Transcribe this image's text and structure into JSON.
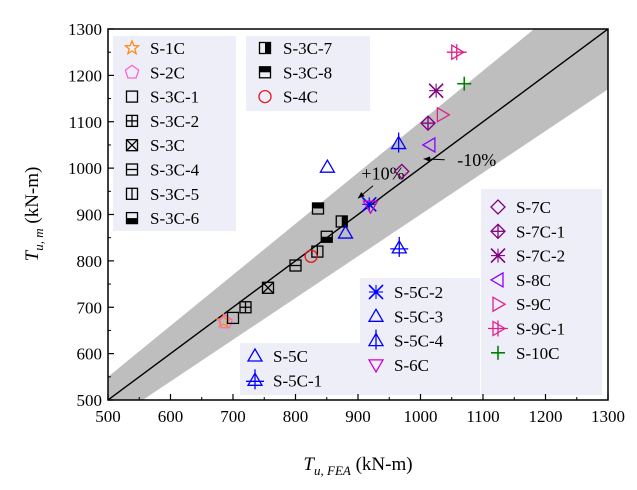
{
  "chart_data": {
    "type": "scatter",
    "title": "",
    "xlabel": {
      "main": "T",
      "sub": "u, FEA",
      "unit": " (kN-m)"
    },
    "ylabel": {
      "main": "T",
      "sub": "u, m",
      "unit": " (kN-m)"
    },
    "xlim": [
      500,
      1300
    ],
    "ylim": [
      500,
      1300
    ],
    "xticks": [
      500,
      600,
      700,
      800,
      900,
      1000,
      1100,
      1200,
      1300
    ],
    "yticks": [
      500,
      600,
      700,
      800,
      900,
      1000,
      1100,
      1200,
      1300
    ],
    "grid": false,
    "reference_line": {
      "slope": 1,
      "label": ""
    },
    "band": {
      "upper_factor": 1.1,
      "lower_factor": 0.9,
      "fill": "#bebebe"
    },
    "annotations": [
      {
        "text": "+10%",
        "at": [
          940,
          975
        ],
        "arrow_to": [
          900,
          935
        ]
      },
      {
        "text": "-10%",
        "at": [
          1090,
          1005
        ],
        "arrow_to": [
          1005,
          1020
        ]
      }
    ],
    "series": [
      {
        "name": "S-1C",
        "marker": "star",
        "color": "#ff8c1a",
        "points": [
          [
            685,
            670
          ]
        ]
      },
      {
        "name": "S-2C",
        "marker": "pentagon",
        "color": "#ff66cc",
        "points": [
          [
            688,
            668
          ]
        ]
      },
      {
        "name": "S-3C-1",
        "marker": "square-open",
        "color": "#000000",
        "points": [
          [
            700,
            677
          ]
        ]
      },
      {
        "name": "S-3C-2",
        "marker": "square-plus",
        "color": "#000000",
        "points": [
          [
            720,
            700
          ]
        ]
      },
      {
        "name": "S-3C",
        "marker": "square-x",
        "color": "#000000",
        "points": [
          [
            756,
            742
          ]
        ]
      },
      {
        "name": "S-3C-4",
        "marker": "square-hline",
        "color": "#000000",
        "points": [
          [
            800,
            790
          ]
        ]
      },
      {
        "name": "S-3C-5",
        "marker": "square-vline",
        "color": "#000000",
        "points": [
          [
            835,
            820
          ]
        ]
      },
      {
        "name": "S-3C-6",
        "marker": "square-bottom",
        "color": "#000000",
        "points": [
          [
            850,
            852
          ]
        ]
      },
      {
        "name": "S-3C-7",
        "marker": "square-right",
        "color": "#000000",
        "points": [
          [
            874,
            885
          ]
        ]
      },
      {
        "name": "S-3C-8",
        "marker": "square-top",
        "color": "#000000",
        "points": [
          [
            836,
            913
          ]
        ]
      },
      {
        "name": "S-4C",
        "marker": "circle",
        "color": "#e8141e",
        "points": [
          [
            825,
            810
          ]
        ]
      },
      {
        "name": "S-5C",
        "marker": "triangle-up",
        "color": "#0000ff",
        "points": [
          [
            880,
            860
          ]
        ]
      },
      {
        "name": "S-5C-1",
        "marker": "triangle-up-plus",
        "color": "#0000ff",
        "points": [
          [
            966,
            828
          ]
        ]
      },
      {
        "name": "S-5C-2",
        "marker": "x-star",
        "color": "#0000ff",
        "points": [
          [
            918,
            922
          ]
        ]
      },
      {
        "name": "S-5C-3",
        "marker": "triangle-up",
        "color": "#0000ff",
        "points": [
          [
            851,
            1002
          ]
        ]
      },
      {
        "name": "S-5C-4",
        "marker": "triangle-up-vline",
        "color": "#0000ff",
        "points": [
          [
            965,
            1053
          ]
        ]
      },
      {
        "name": "S-6C",
        "marker": "triangle-down",
        "color": "#cc00cc",
        "points": [
          [
            920,
            918
          ]
        ]
      },
      {
        "name": "S-7C",
        "marker": "diamond",
        "color": "#800080",
        "points": [
          [
            970,
            993
          ]
        ]
      },
      {
        "name": "S-7C-1",
        "marker": "diamond-plus",
        "color": "#800080",
        "points": [
          [
            1012,
            1097
          ]
        ]
      },
      {
        "name": "S-7C-2",
        "marker": "x-star",
        "color": "#800080",
        "points": [
          [
            1025,
            1167
          ]
        ]
      },
      {
        "name": "S-8C",
        "marker": "triangle-left",
        "color": "#8c00ff",
        "points": [
          [
            1015,
            1050
          ]
        ]
      },
      {
        "name": "S-9C",
        "marker": "triangle-right",
        "color": "#e0208c",
        "points": [
          [
            1035,
            1115
          ]
        ]
      },
      {
        "name": "S-9C-1",
        "marker": "triangle-right-plus",
        "color": "#e0208c",
        "points": [
          [
            1058,
            1250
          ]
        ]
      },
      {
        "name": "S-10C",
        "marker": "plus",
        "color": "#008000",
        "points": [
          [
            1070,
            1182
          ]
        ]
      }
    ],
    "legend_groups": [
      {
        "location": "top-left column 1",
        "items": [
          "S-1C",
          "S-2C",
          "S-3C-1",
          "S-3C-2",
          "S-3C",
          "S-3C-4",
          "S-3C-5",
          "S-3C-6"
        ]
      },
      {
        "location": "top-left column 2",
        "items": [
          "S-3C-7",
          "S-3C-8",
          "S-4C"
        ]
      },
      {
        "location": "bottom-center",
        "items": [
          "S-5C",
          "S-5C-1"
        ]
      },
      {
        "location": "bottom-right column 1",
        "items": [
          "S-5C-2",
          "S-5C-3",
          "S-5C-4",
          "S-6C"
        ]
      },
      {
        "location": "right column 2",
        "items": [
          "S-7C",
          "S-7C-1",
          "S-7C-2",
          "S-8C",
          "S-9C",
          "S-9C-1",
          "S-10C"
        ]
      }
    ]
  }
}
